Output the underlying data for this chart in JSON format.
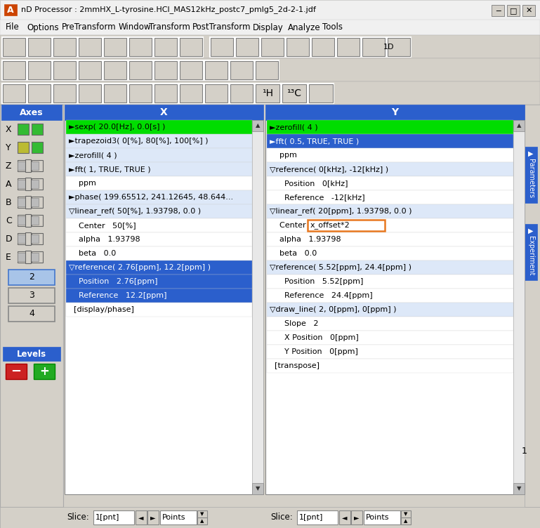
{
  "title": "nD Processor : 2mmHX_L-tyrosine.HCl_MAS12kHz_postc7_pmlg5_2d-2-1.jdf",
  "menu_items": [
    "File",
    "Options",
    "PreTransform",
    "Window",
    "Transform",
    "PostTransform",
    "Display",
    "Analyze",
    "Tools"
  ],
  "axes_labels": [
    "X",
    "Y",
    "Z",
    "A",
    "B",
    "C",
    "D",
    "E"
  ],
  "view_buttons": [
    "2",
    "3",
    "4"
  ],
  "x_items": [
    {
      "text": "►sexp( 20.0[Hz], 0.0[s] )",
      "bg": "#00dd00",
      "fg": "#000000",
      "indent": 0
    },
    {
      "text": "►trapezoid3( 0[%], 80[%], 100[%] )",
      "bg": "#dde8f8",
      "fg": "#000000",
      "indent": 0
    },
    {
      "text": "►zerofill( 4 )",
      "bg": "#dde8f8",
      "fg": "#000000",
      "indent": 0
    },
    {
      "text": "►fft( 1, TRUE, TRUE )",
      "bg": "#dde8f8",
      "fg": "#000000",
      "indent": 0
    },
    {
      "text": "    ppm",
      "bg": "#ffffff",
      "fg": "#000000",
      "indent": 0
    },
    {
      "text": "►phase( 199.65512, 241.12645, 48.644...",
      "bg": "#dde8f8",
      "fg": "#000000",
      "indent": 0
    },
    {
      "text": "▽linear_ref( 50[%], 1.93798, 0.0 )",
      "bg": "#dde8f8",
      "fg": "#000000",
      "indent": 0
    },
    {
      "text": "    Center   50[%]",
      "bg": "#ffffff",
      "fg": "#000000",
      "indent": 0
    },
    {
      "text": "    alpha   1.93798",
      "bg": "#ffffff",
      "fg": "#000000",
      "indent": 0
    },
    {
      "text": "    beta   0.0",
      "bg": "#ffffff",
      "fg": "#000000",
      "indent": 0
    },
    {
      "text": "▽reference( 2.76[ppm], 12.2[ppm] )",
      "bg": "#2b5fcc",
      "fg": "#ffffff",
      "indent": 0
    },
    {
      "text": "    Position   2.76[ppm]",
      "bg": "#2b5fcc",
      "fg": "#ffffff",
      "indent": 0
    },
    {
      "text": "    Reference   12.2[ppm]",
      "bg": "#2b5fcc",
      "fg": "#ffffff",
      "indent": 0
    },
    {
      "text": "  [display/phase]",
      "bg": "#ffffff",
      "fg": "#000000",
      "indent": 0
    }
  ],
  "y_items": [
    {
      "text": "►zerofill( 4 )",
      "bg": "#00dd00",
      "fg": "#000000",
      "indent": 0
    },
    {
      "text": "►fft( 0.5, TRUE, TRUE )",
      "bg": "#2b5fcc",
      "fg": "#ffffff",
      "indent": 0
    },
    {
      "text": "    ppm",
      "bg": "#ffffff",
      "fg": "#000000",
      "indent": 0
    },
    {
      "text": "▽reference( 0[kHz], -12[kHz] )",
      "bg": "#dde8f8",
      "fg": "#000000",
      "indent": 0
    },
    {
      "text": "      Position   0[kHz]",
      "bg": "#ffffff",
      "fg": "#000000",
      "indent": 0
    },
    {
      "text": "      Reference   -12[kHz]",
      "bg": "#ffffff",
      "fg": "#000000",
      "indent": 0
    },
    {
      "text": "▽linear_ref( 20[ppm], 1.93798, 0.0 )",
      "bg": "#dde8f8",
      "fg": "#000000",
      "indent": 0
    },
    {
      "text": "Center",
      "bg": "#ffffff",
      "fg": "#000000",
      "indent": 0,
      "has_input": true,
      "input_text": "x_offset*2"
    },
    {
      "text": "    alpha   1.93798",
      "bg": "#ffffff",
      "fg": "#000000",
      "indent": 0
    },
    {
      "text": "    beta   0.0",
      "bg": "#ffffff",
      "fg": "#000000",
      "indent": 0
    },
    {
      "text": "▽reference( 5.52[ppm], 24.4[ppm] )",
      "bg": "#dde8f8",
      "fg": "#000000",
      "indent": 0
    },
    {
      "text": "      Position   5.52[ppm]",
      "bg": "#ffffff",
      "fg": "#000000",
      "indent": 0
    },
    {
      "text": "      Reference   24.4[ppm]",
      "bg": "#ffffff",
      "fg": "#000000",
      "indent": 0
    },
    {
      "text": "▽draw_line( 2, 0[ppm], 0[ppm] )",
      "bg": "#dde8f8",
      "fg": "#000000",
      "indent": 0
    },
    {
      "text": "      Slope   2",
      "bg": "#ffffff",
      "fg": "#000000",
      "indent": 0
    },
    {
      "text": "      X Position   0[ppm]",
      "bg": "#ffffff",
      "fg": "#000000",
      "indent": 0
    },
    {
      "text": "      Y Position   0[ppm]",
      "bg": "#ffffff",
      "fg": "#000000",
      "indent": 0
    },
    {
      "text": "  [transpose]",
      "bg": "#ffffff",
      "fg": "#000000",
      "indent": 0
    }
  ],
  "bg_color": "#d4d0c8",
  "header_bg": "#2b5fcc",
  "axes_bg": "#2b5fcc",
  "right_tab_color": "#2b5fcc",
  "titlebar_bg": "#f0f0f0",
  "menubar_bg": "#f0f0f0",
  "toolbar_bg": "#d4d0c8",
  "btn_bg": "#d4d0c8",
  "slice_text_x": "1[pnt]",
  "slice_text_y": "1[pnt]"
}
